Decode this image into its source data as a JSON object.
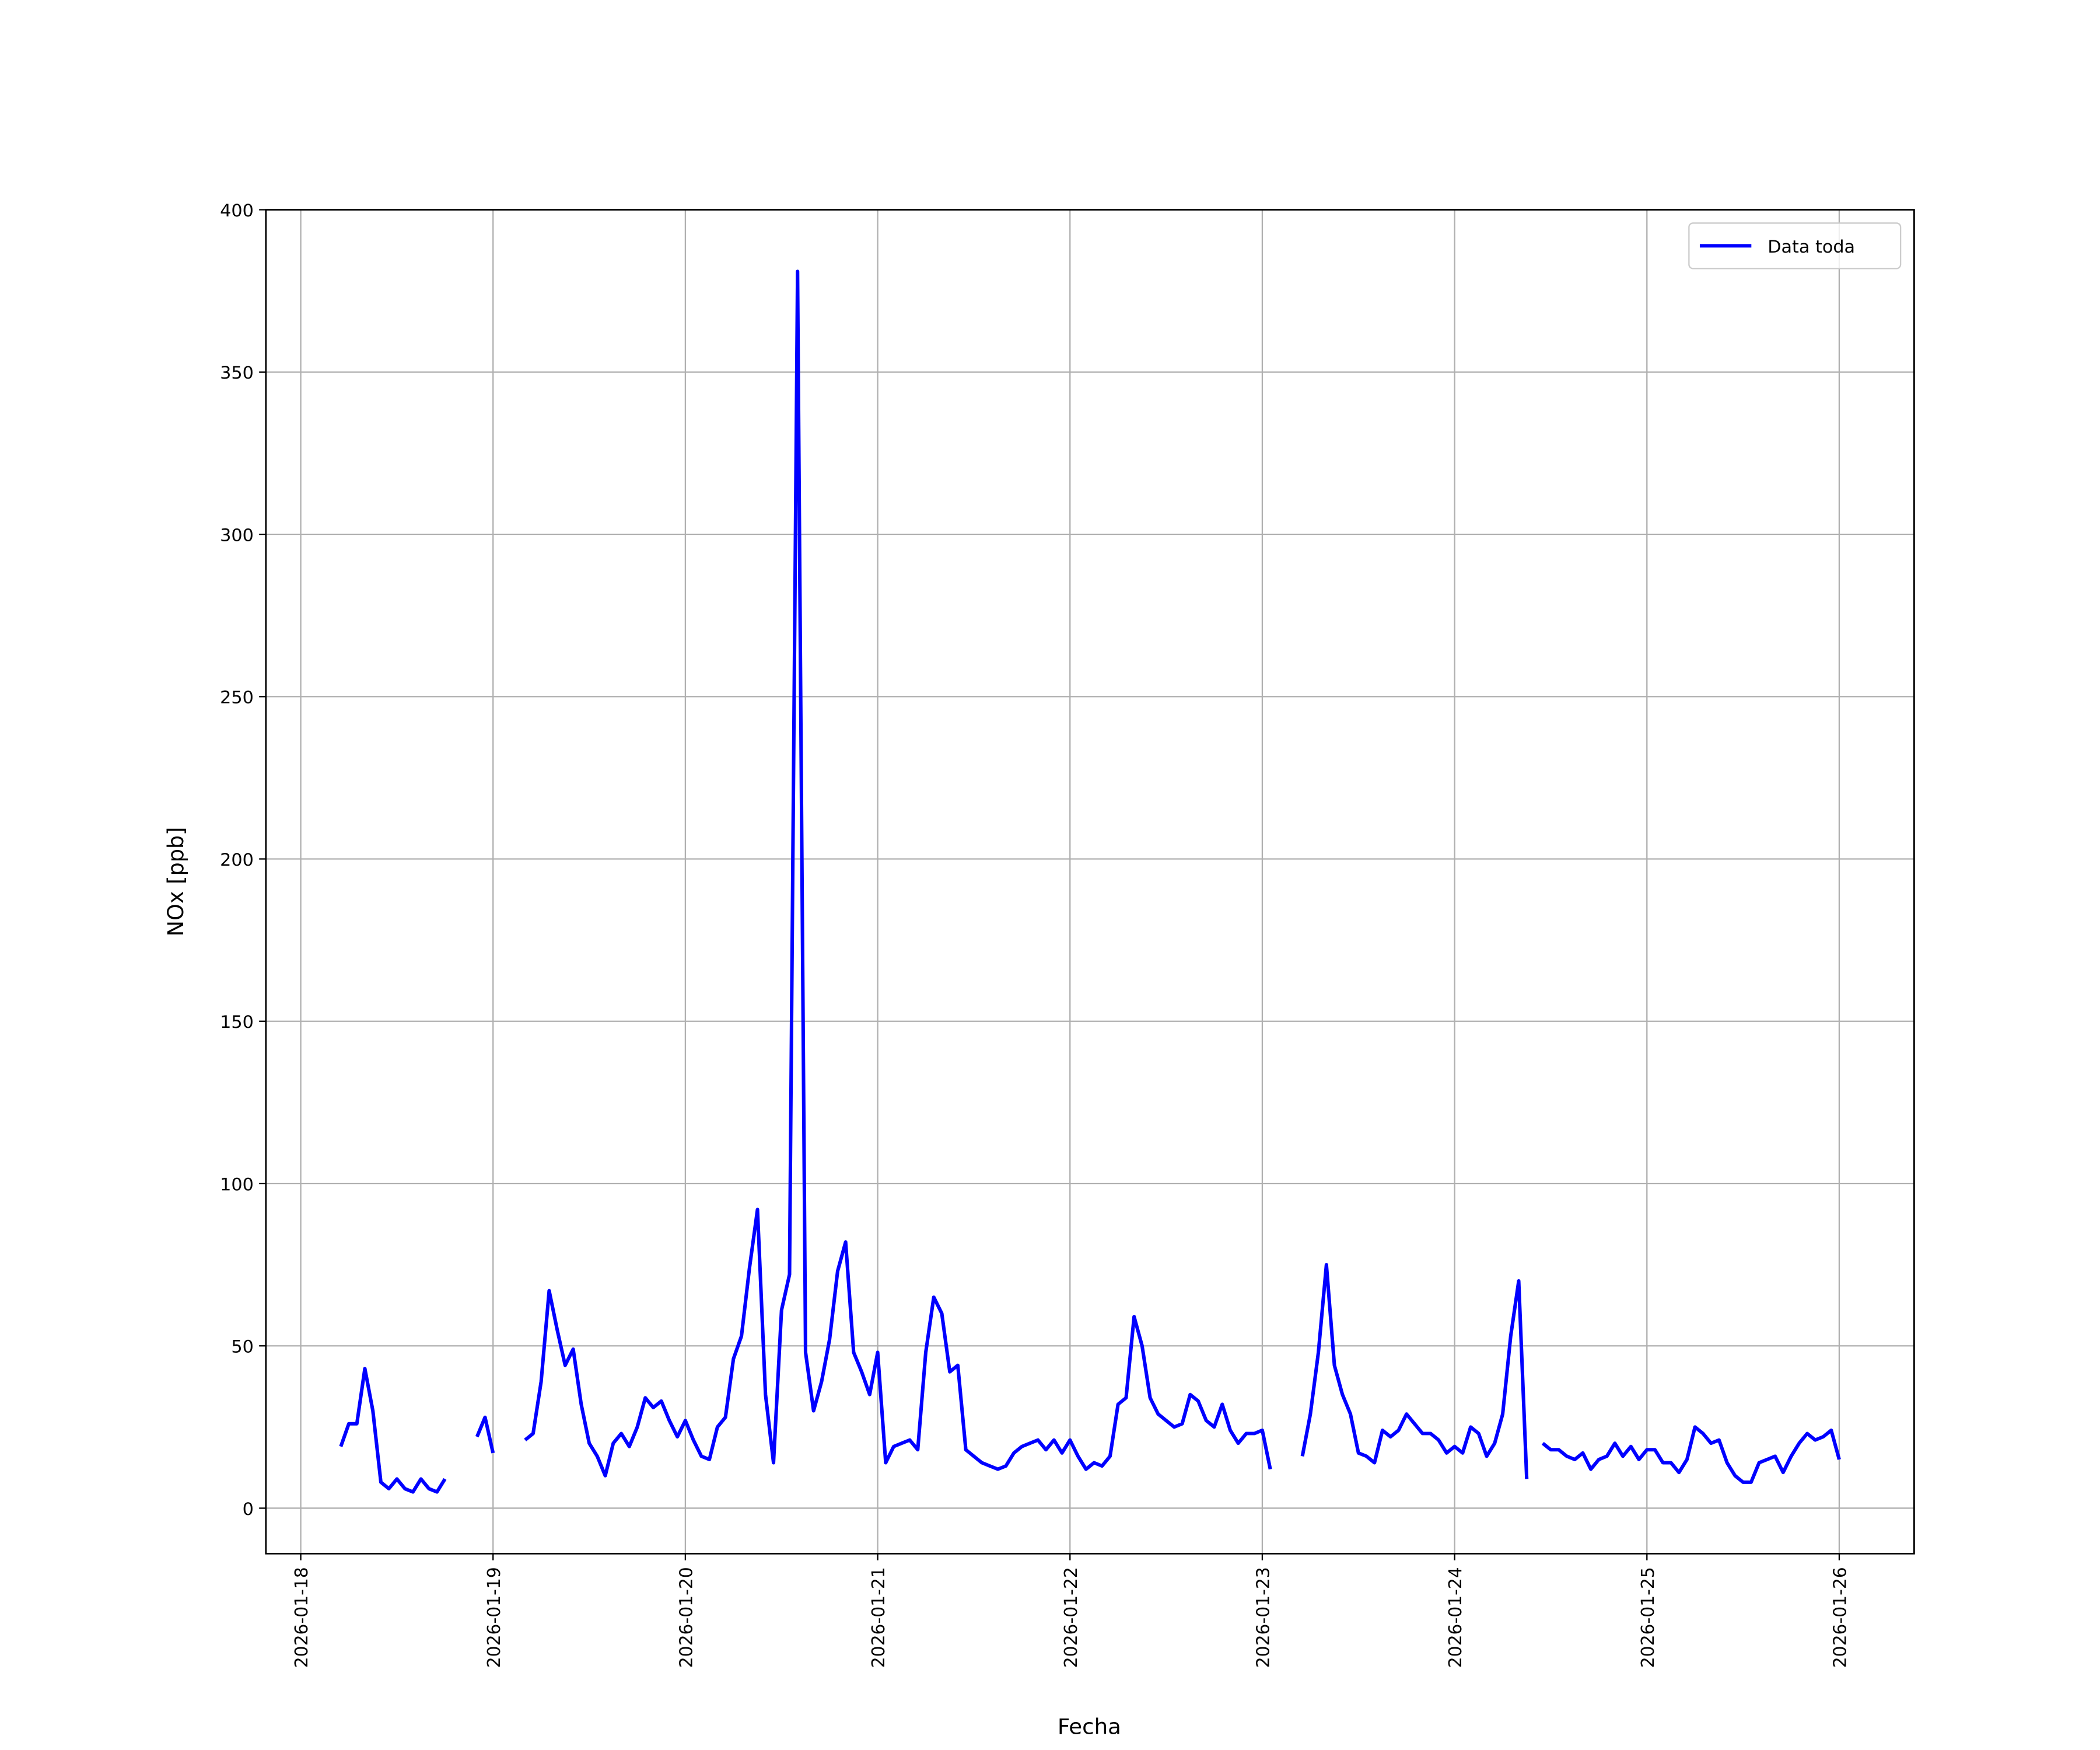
{
  "chart_data": {
    "type": "line",
    "xlabel": "Fecha",
    "ylabel": "NOx [ppb]",
    "legend": "upper right",
    "grid": true,
    "xlim": [
      "2026-01-17 19:39",
      "2026-01-26 09:21"
    ],
    "ylim": [
      -14,
      400
    ],
    "xticks": [
      "2026-01-18",
      "2026-01-19",
      "2026-01-20",
      "2026-01-21",
      "2026-01-22",
      "2026-01-23",
      "2026-01-24",
      "2026-01-25",
      "2026-01-26"
    ],
    "yticks": [
      0,
      50,
      100,
      150,
      200,
      250,
      300,
      350,
      400
    ],
    "x": [
      "2026-01-18 05:00",
      "2026-01-18 06:00",
      "2026-01-18 07:00",
      "2026-01-18 08:00",
      "2026-01-18 09:00",
      "2026-01-18 10:00",
      "2026-01-18 11:00",
      "2026-01-18 12:00",
      "2026-01-18 13:00",
      "2026-01-18 14:00",
      "2026-01-18 15:00",
      "2026-01-18 16:00",
      "2026-01-18 17:00",
      "2026-01-18 18:00",
      "2026-01-18 19:00",
      "2026-01-18 20:00",
      "2026-01-18 21:00",
      "2026-01-18 22:00",
      "2026-01-18 23:00",
      "2026-01-19 00:00",
      "2026-01-19 01:00",
      "2026-01-19 02:00",
      "2026-01-19 03:00",
      "2026-01-19 04:00",
      "2026-01-19 05:00",
      "2026-01-19 06:00",
      "2026-01-19 07:00",
      "2026-01-19 08:00",
      "2026-01-19 09:00",
      "2026-01-19 10:00",
      "2026-01-19 11:00",
      "2026-01-19 12:00",
      "2026-01-19 13:00",
      "2026-01-19 14:00",
      "2026-01-19 15:00",
      "2026-01-19 16:00",
      "2026-01-19 17:00",
      "2026-01-19 18:00",
      "2026-01-19 19:00",
      "2026-01-19 20:00",
      "2026-01-19 21:00",
      "2026-01-19 22:00",
      "2026-01-19 23:00",
      "2026-01-20 00:00",
      "2026-01-20 01:00",
      "2026-01-20 02:00",
      "2026-01-20 03:00",
      "2026-01-20 04:00",
      "2026-01-20 05:00",
      "2026-01-20 06:00",
      "2026-01-20 07:00",
      "2026-01-20 08:00",
      "2026-01-20 09:00",
      "2026-01-20 10:00",
      "2026-01-20 11:00",
      "2026-01-20 12:00",
      "2026-01-20 13:00",
      "2026-01-20 14:00",
      "2026-01-20 15:00",
      "2026-01-20 16:00",
      "2026-01-20 17:00",
      "2026-01-20 18:00",
      "2026-01-20 19:00",
      "2026-01-20 20:00",
      "2026-01-20 21:00",
      "2026-01-20 22:00",
      "2026-01-20 23:00",
      "2026-01-21 00:00",
      "2026-01-21 01:00",
      "2026-01-21 02:00",
      "2026-01-21 03:00",
      "2026-01-21 04:00",
      "2026-01-21 05:00",
      "2026-01-21 06:00",
      "2026-01-21 07:00",
      "2026-01-21 08:00",
      "2026-01-21 09:00",
      "2026-01-21 10:00",
      "2026-01-21 11:00",
      "2026-01-21 12:00",
      "2026-01-21 13:00",
      "2026-01-21 14:00",
      "2026-01-21 15:00",
      "2026-01-21 16:00",
      "2026-01-21 17:00",
      "2026-01-21 18:00",
      "2026-01-21 19:00",
      "2026-01-21 20:00",
      "2026-01-21 21:00",
      "2026-01-21 22:00",
      "2026-01-21 23:00",
      "2026-01-22 00:00",
      "2026-01-22 01:00",
      "2026-01-22 02:00",
      "2026-01-22 03:00",
      "2026-01-22 04:00",
      "2026-01-22 05:00",
      "2026-01-22 06:00",
      "2026-01-22 07:00",
      "2026-01-22 08:00",
      "2026-01-22 09:00",
      "2026-01-22 10:00",
      "2026-01-22 11:00",
      "2026-01-22 12:00",
      "2026-01-22 13:00",
      "2026-01-22 14:00",
      "2026-01-22 15:00",
      "2026-01-22 16:00",
      "2026-01-22 17:00",
      "2026-01-22 18:00",
      "2026-01-22 19:00",
      "2026-01-22 20:00",
      "2026-01-22 21:00",
      "2026-01-22 22:00",
      "2026-01-22 23:00",
      "2026-01-23 00:00",
      "2026-01-23 01:00",
      "2026-01-23 02:00",
      "2026-01-23 03:00",
      "2026-01-23 04:00",
      "2026-01-23 05:00",
      "2026-01-23 06:00",
      "2026-01-23 07:00",
      "2026-01-23 08:00",
      "2026-01-23 09:00",
      "2026-01-23 10:00",
      "2026-01-23 11:00",
      "2026-01-23 12:00",
      "2026-01-23 13:00",
      "2026-01-23 14:00",
      "2026-01-23 15:00",
      "2026-01-23 16:00",
      "2026-01-23 17:00",
      "2026-01-23 18:00",
      "2026-01-23 19:00",
      "2026-01-23 20:00",
      "2026-01-23 21:00",
      "2026-01-23 22:00",
      "2026-01-23 23:00",
      "2026-01-24 00:00",
      "2026-01-24 01:00",
      "2026-01-24 02:00",
      "2026-01-24 03:00",
      "2026-01-24 04:00",
      "2026-01-24 05:00",
      "2026-01-24 06:00",
      "2026-01-24 07:00",
      "2026-01-24 08:00",
      "2026-01-24 09:00",
      "2026-01-24 10:00",
      "2026-01-24 11:00",
      "2026-01-24 12:00",
      "2026-01-24 13:00",
      "2026-01-24 14:00",
      "2026-01-24 15:00",
      "2026-01-24 16:00",
      "2026-01-24 17:00",
      "2026-01-24 18:00",
      "2026-01-24 19:00",
      "2026-01-24 20:00",
      "2026-01-24 21:00",
      "2026-01-24 22:00",
      "2026-01-24 23:00",
      "2026-01-25 00:00",
      "2026-01-25 01:00",
      "2026-01-25 02:00",
      "2026-01-25 03:00",
      "2026-01-25 04:00",
      "2026-01-25 05:00",
      "2026-01-25 06:00",
      "2026-01-25 07:00",
      "2026-01-25 08:00",
      "2026-01-25 09:00",
      "2026-01-25 10:00",
      "2026-01-25 11:00",
      "2026-01-25 12:00",
      "2026-01-25 13:00",
      "2026-01-25 14:00",
      "2026-01-25 15:00",
      "2026-01-25 16:00",
      "2026-01-25 17:00",
      "2026-01-25 18:00",
      "2026-01-25 19:00",
      "2026-01-25 20:00",
      "2026-01-25 21:00",
      "2026-01-25 22:00",
      "2026-01-25 23:00",
      "2026-01-26 00:00"
    ],
    "series": [
      {
        "name": "Data toda",
        "color": "#0000ff",
        "values": [
          19,
          26,
          26,
          43,
          30,
          8,
          6,
          9,
          6,
          5,
          9,
          6,
          5,
          9,
          null,
          null,
          null,
          22,
          28,
          17,
          null,
          null,
          null,
          21,
          23,
          39,
          67,
          55,
          44,
          49,
          32,
          20,
          16,
          10,
          20,
          23,
          19,
          25,
          34,
          31,
          33,
          27,
          22,
          27,
          21,
          16,
          15,
          25,
          28,
          46,
          53,
          74,
          92,
          35,
          14,
          61,
          72,
          381,
          48,
          30,
          39,
          52,
          73,
          82,
          48,
          42,
          35,
          48,
          14,
          19,
          20,
          21,
          18,
          48,
          65,
          60,
          42,
          44,
          18,
          16,
          14,
          13,
          12,
          13,
          17,
          19,
          20,
          21,
          18,
          21,
          17,
          21,
          16,
          12,
          14,
          13,
          16,
          32,
          34,
          59,
          50,
          34,
          29,
          27,
          25,
          26,
          35,
          33,
          27,
          25,
          32,
          24,
          20,
          23,
          23,
          24,
          12,
          null,
          null,
          null,
          16,
          29,
          48,
          75,
          44,
          35,
          29,
          17,
          16,
          14,
          24,
          22,
          24,
          29,
          26,
          23,
          23,
          21,
          17,
          19,
          17,
          25,
          23,
          16,
          20,
          29,
          53,
          70,
          9,
          null,
          20,
          18,
          18,
          16,
          15,
          17,
          12,
          15,
          16,
          20,
          16,
          19,
          15,
          18,
          18,
          14,
          14,
          11,
          15,
          25,
          23,
          20,
          21,
          14,
          10,
          8,
          8,
          14,
          15,
          16,
          11,
          16,
          20,
          23,
          21,
          22,
          24,
          15
        ]
      }
    ]
  }
}
